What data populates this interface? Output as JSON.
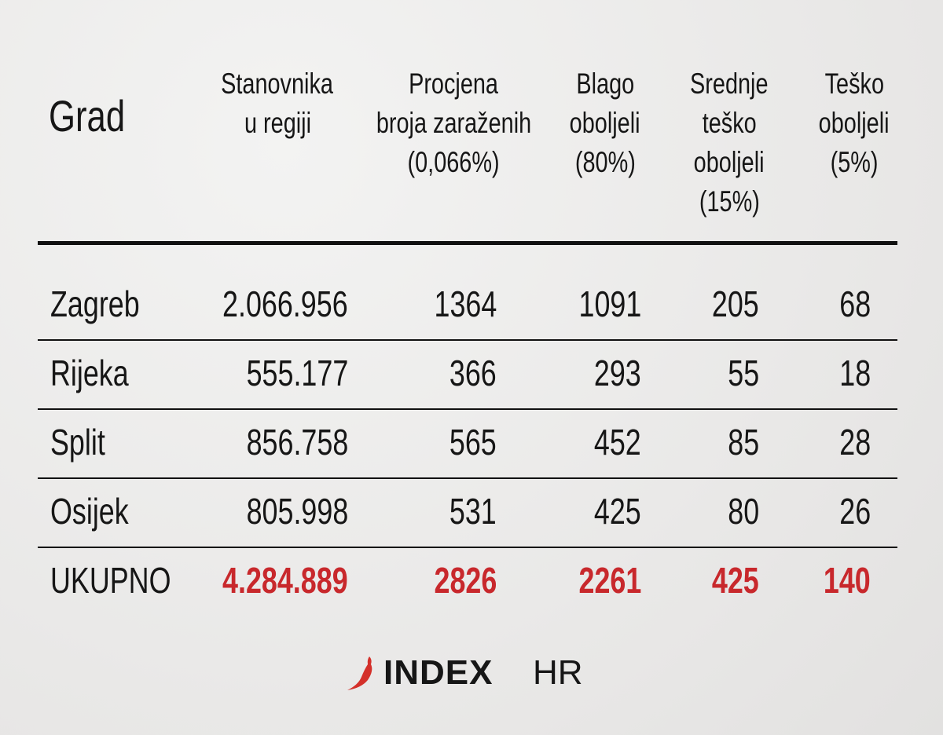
{
  "chart_data": {
    "type": "table",
    "columns": [
      {
        "lines": [
          "Grad"
        ]
      },
      {
        "lines": [
          "Stanovnika",
          "u regiji"
        ]
      },
      {
        "lines": [
          "Procjena",
          "broja zaraženih",
          "(0,066%)"
        ]
      },
      {
        "lines": [
          "Blago",
          "oboljeli",
          "(80%)"
        ]
      },
      {
        "lines": [
          "Srednje",
          "teško",
          "oboljeli",
          "(15%)"
        ]
      },
      {
        "lines": [
          "Teško",
          "oboljeli",
          "(5%)"
        ]
      }
    ],
    "rows": [
      [
        "Zagreb",
        "2.066.956",
        "1364",
        "1091",
        "205",
        "68"
      ],
      [
        "Rijeka",
        "555.177",
        "366",
        "293",
        "55",
        "18"
      ],
      [
        "Split",
        "856.758",
        "565",
        "452",
        "85",
        "28"
      ],
      [
        "Osijek",
        "805.998",
        "531",
        "425",
        "80",
        "26"
      ]
    ],
    "total": [
      "UKUPNO",
      "4.284.889",
      "2826",
      "2261",
      "425",
      "140"
    ]
  },
  "colors": {
    "total_values": "#c8282c",
    "logo_chili": "#d4302a"
  },
  "logo": {
    "text_bold": "INDEX",
    "text_light": "HR"
  }
}
